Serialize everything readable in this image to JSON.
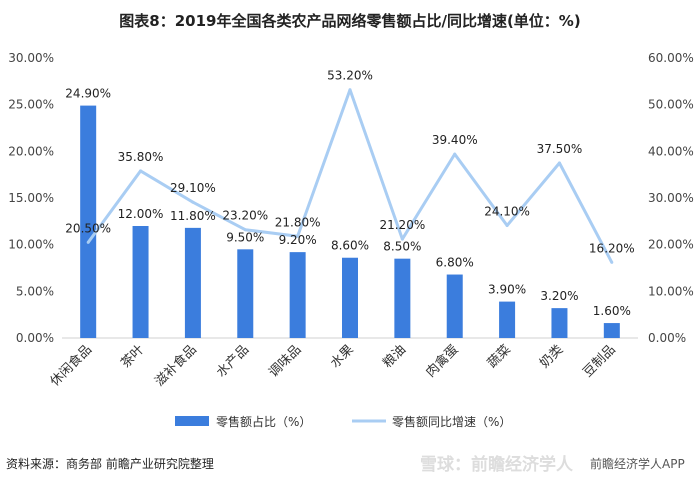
{
  "chart_data": {
    "type": "bar",
    "title": "图表8：2019年全国各类农产品网络零售额占比/同比增速(单位：%)",
    "categories": [
      "休闲食品",
      "茶叶",
      "滋补食品",
      "水产品",
      "调味品",
      "水果",
      "粮油",
      "肉禽蛋",
      "蔬菜",
      "奶类",
      "豆制品"
    ],
    "series": [
      {
        "name": "零售额占比（%）",
        "kind": "bar",
        "axis": "left",
        "values": [
          24.9,
          12.0,
          11.8,
          9.5,
          9.2,
          8.6,
          8.5,
          6.8,
          3.9,
          3.2,
          1.6
        ],
        "labels": [
          "24.90%",
          "12.00%",
          "11.80%",
          "9.50%",
          "9.20%",
          "8.60%",
          "8.50%",
          "6.80%",
          "3.90%",
          "3.20%",
          "1.60%"
        ],
        "color": "#3b7ddd"
      },
      {
        "name": "零售额同比增速（%）",
        "kind": "line",
        "axis": "right",
        "values": [
          20.5,
          35.8,
          29.1,
          23.2,
          21.8,
          53.2,
          21.2,
          39.4,
          24.1,
          37.5,
          16.2
        ],
        "labels": [
          "20.50%",
          "35.80%",
          "29.10%",
          "23.20%",
          "21.80%",
          "53.20%",
          "21.20%",
          "39.40%",
          "24.10%",
          "37.50%",
          "16.20%"
        ],
        "color": "#a9cdf3"
      }
    ],
    "ylim_left": [
      0,
      30
    ],
    "ylim_right": [
      0,
      60
    ],
    "yticks_left": [
      "0.00%",
      "5.00%",
      "10.00%",
      "15.00%",
      "20.00%",
      "25.00%",
      "30.00%"
    ],
    "yticks_right": [
      "0.00%",
      "10.00%",
      "20.00%",
      "30.00%",
      "40.00%",
      "50.00%",
      "60.00%"
    ],
    "grid": false,
    "legend": "bottom-center"
  },
  "source": "资料来源：商务部 前瞻产业研究院整理",
  "watermark": {
    "brand": "雪球：前瞻经济学人",
    "app": "前瞻经济学人APP"
  }
}
